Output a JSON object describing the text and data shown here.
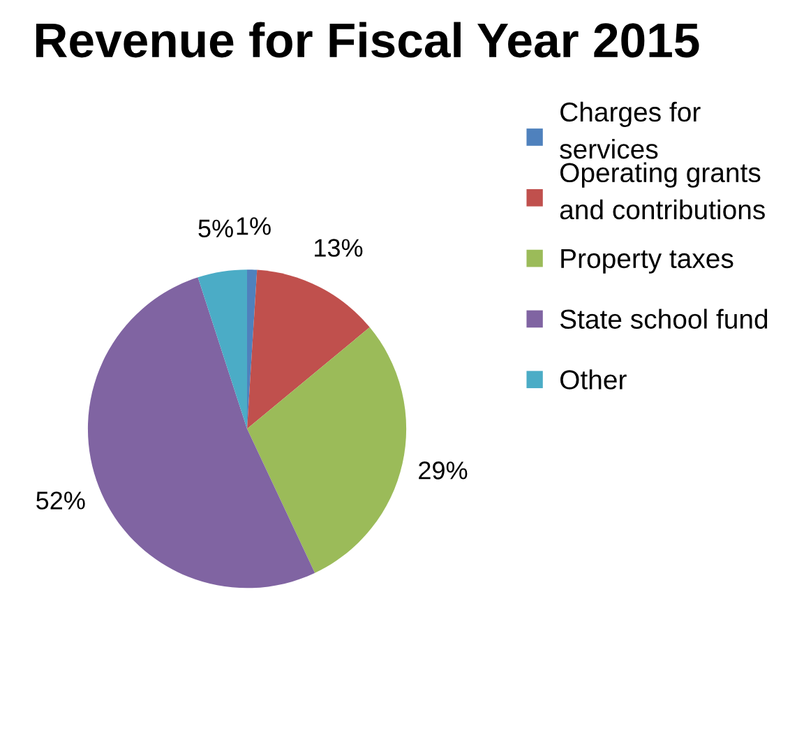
{
  "chart_data": {
    "type": "pie",
    "title": "Revenue for Fiscal Year 2015",
    "categories": [
      "Charges for services",
      "Operating grants and contributions",
      "Property taxes",
      "State school fund",
      "Other"
    ],
    "values": [
      1,
      13,
      29,
      52,
      5
    ],
    "value_labels": [
      "1%",
      "13%",
      "29%",
      "52%",
      "5%"
    ],
    "colors": [
      "#4f81bd",
      "#c0504d",
      "#9bbb59",
      "#8064a2",
      "#4bacc6"
    ],
    "legend": "right"
  }
}
